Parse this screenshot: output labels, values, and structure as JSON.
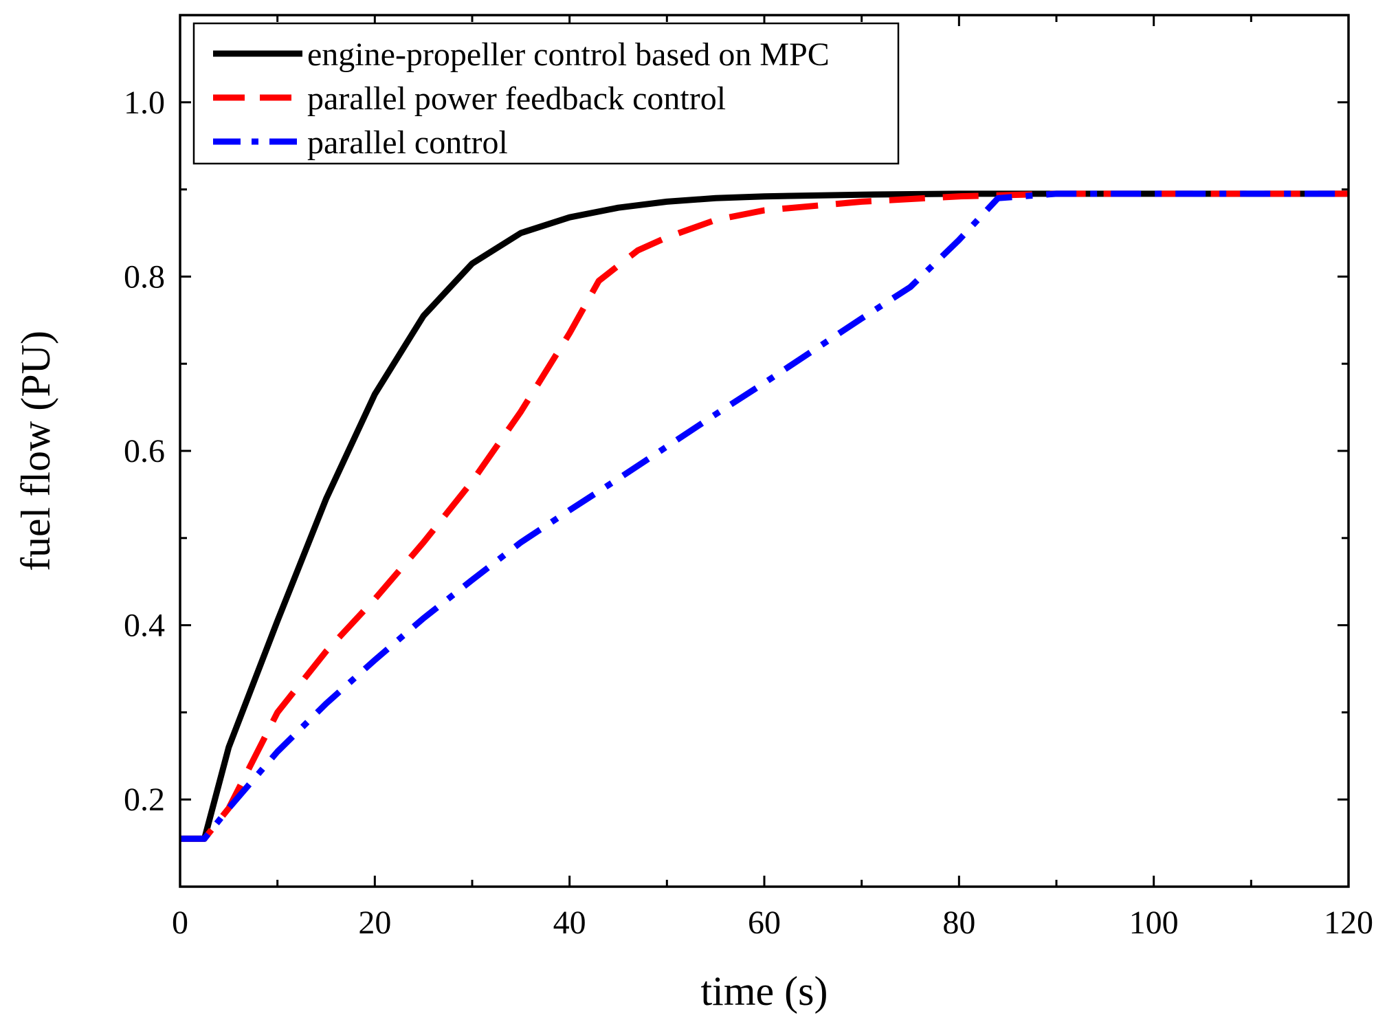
{
  "chart_data": {
    "type": "line",
    "title": "",
    "xlabel": "time (s)",
    "ylabel": "fuel flow (PU)",
    "xlim": [
      0,
      120
    ],
    "ylim": [
      0.1,
      1.1
    ],
    "xticks": [
      0,
      20,
      40,
      60,
      80,
      100,
      120
    ],
    "xtick_labels": [
      "0",
      "20",
      "40",
      "60",
      "80",
      "100",
      "120"
    ],
    "yticks": [
      0.2,
      0.4,
      0.6,
      0.8,
      1.0
    ],
    "ytick_labels": [
      "0.2",
      "0.4",
      "0.6",
      "0.8",
      "1.0"
    ],
    "minor_xticks": [
      10,
      30,
      50,
      70,
      90,
      110
    ],
    "minor_yticks": [
      0.3,
      0.5,
      0.7,
      0.9
    ],
    "grid": false,
    "legend_position": "top-left",
    "series": [
      {
        "name": "engine-propeller control based on MPC",
        "color": "#000000",
        "style": "solid",
        "x": [
          0,
          2.5,
          5,
          10,
          15,
          20,
          25,
          30,
          35,
          40,
          45,
          50,
          55,
          60,
          70,
          80,
          90,
          100,
          110,
          120
        ],
        "y": [
          0.155,
          0.155,
          0.26,
          0.405,
          0.545,
          0.665,
          0.755,
          0.815,
          0.85,
          0.868,
          0.879,
          0.886,
          0.89,
          0.892,
          0.894,
          0.895,
          0.895,
          0.895,
          0.895,
          0.895
        ]
      },
      {
        "name": "parallel power feedback control",
        "color": "#ff0000",
        "style": "dashed",
        "x": [
          0,
          2.5,
          5,
          10,
          15,
          20,
          25,
          30,
          35,
          40,
          43,
          47,
          50,
          55,
          60,
          70,
          80,
          90,
          100,
          110,
          120
        ],
        "y": [
          0.155,
          0.155,
          0.19,
          0.3,
          0.37,
          0.43,
          0.495,
          0.565,
          0.645,
          0.735,
          0.795,
          0.83,
          0.845,
          0.865,
          0.876,
          0.886,
          0.892,
          0.895,
          0.895,
          0.895,
          0.895
        ]
      },
      {
        "name": "parallel control",
        "color": "#0000ff",
        "style": "dash-dot",
        "x": [
          0,
          2.5,
          5,
          10,
          15,
          20,
          25,
          30,
          35,
          40,
          45,
          50,
          55,
          60,
          65,
          70,
          75,
          80,
          84,
          90,
          100,
          110,
          120
        ],
        "y": [
          0.155,
          0.155,
          0.19,
          0.255,
          0.31,
          0.36,
          0.408,
          0.452,
          0.495,
          0.532,
          0.568,
          0.605,
          0.642,
          0.678,
          0.715,
          0.752,
          0.788,
          0.842,
          0.89,
          0.895,
          0.895,
          0.895,
          0.895
        ]
      }
    ]
  }
}
